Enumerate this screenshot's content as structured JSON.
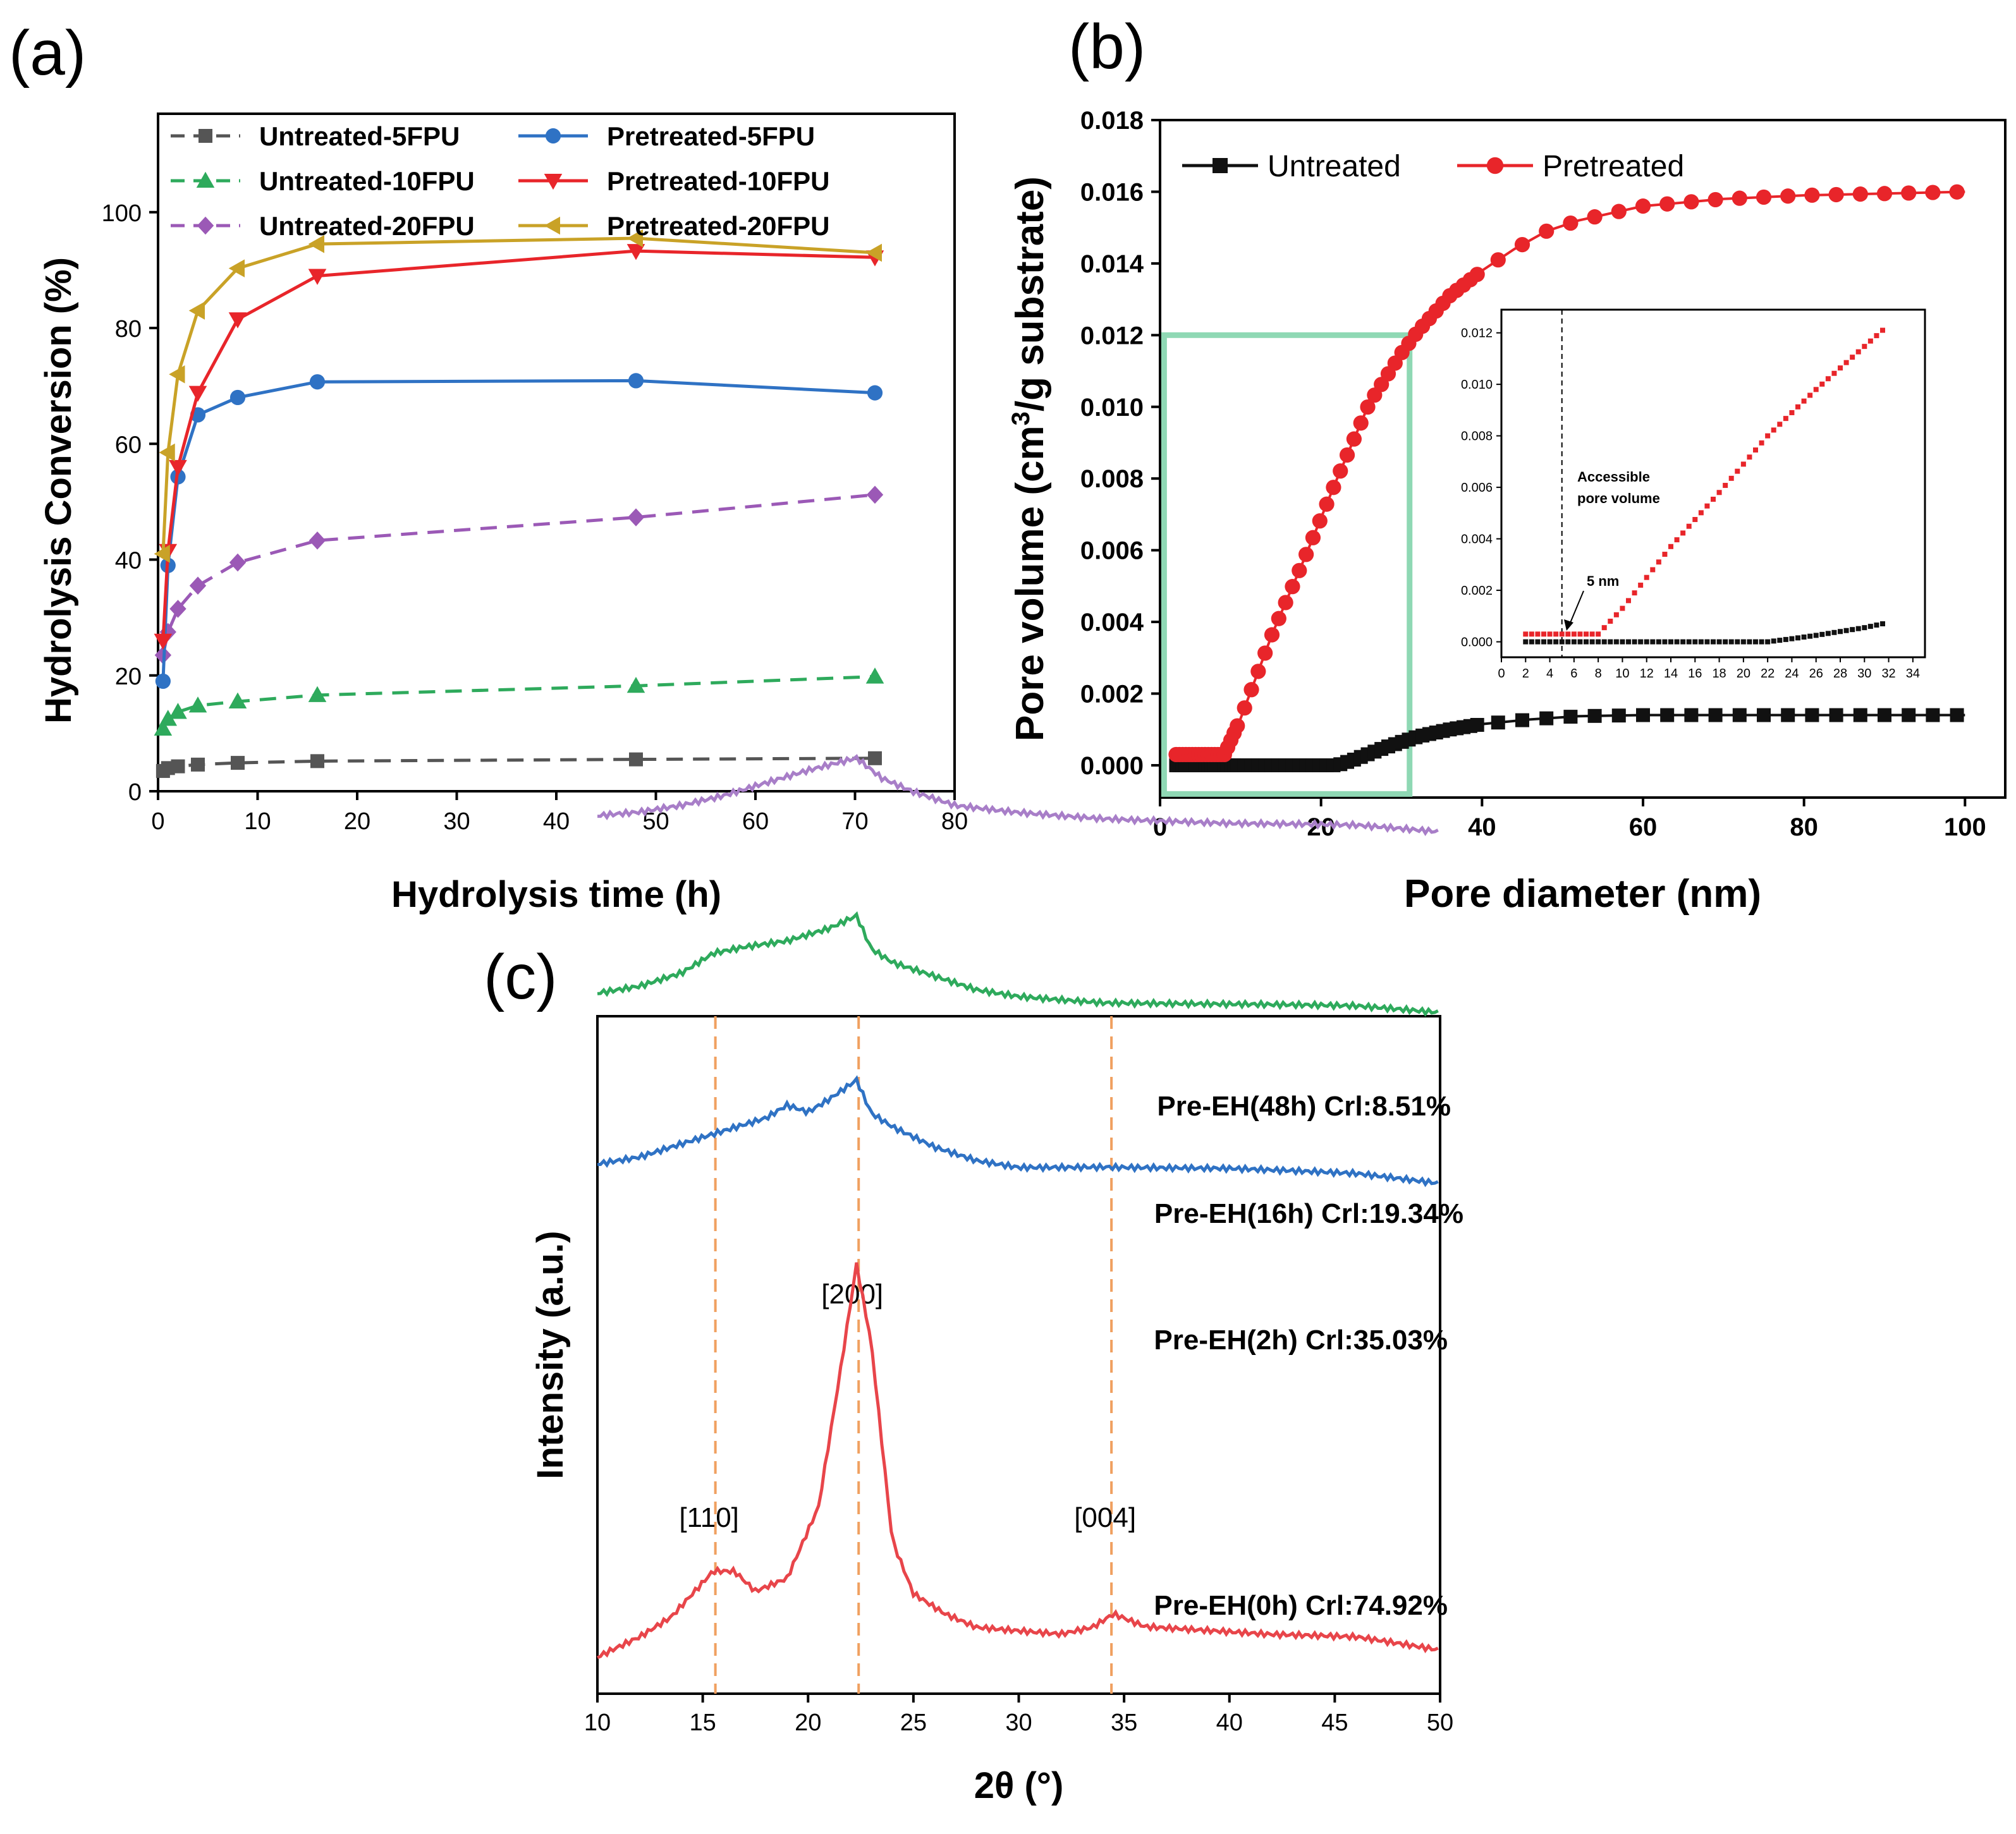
{
  "panels": {
    "a": "(a)",
    "b": "(b)",
    "c": "(c)"
  },
  "chart_data": [
    {
      "id": "a",
      "type": "line",
      "xlabel": "Hydrolysis time (h)",
      "ylabel": "Hydrolysis Conversion (%)",
      "xlim": [
        0,
        80
      ],
      "ylim": [
        0,
        117
      ],
      "xticks": [
        0,
        10,
        20,
        30,
        40,
        50,
        60,
        70,
        80
      ],
      "yticks": [
        0,
        20,
        40,
        60,
        80,
        100
      ],
      "legend_position": "top-left, two columns",
      "x": [
        0.5,
        1,
        2,
        4,
        8,
        16,
        48,
        72
      ],
      "series": [
        {
          "name": "Untreated-5FPU",
          "color": "#555555",
          "marker": "square",
          "dashed": true,
          "values": [
            3.5,
            4.0,
            4.3,
            4.6,
            4.9,
            5.2,
            5.5,
            5.7
          ]
        },
        {
          "name": "Untreated-10FPU",
          "color": "#2eaa5c",
          "marker": "triangle-up",
          "dashed": true,
          "values": [
            10.8,
            12.5,
            13.7,
            14.8,
            15.5,
            16.6,
            18.2,
            19.8
          ]
        },
        {
          "name": "Untreated-20FPU",
          "color": "#9b59b6",
          "marker": "diamond",
          "dashed": true,
          "values": [
            23.5,
            27.5,
            31.5,
            35.5,
            39.5,
            43.3,
            47.3,
            51.2
          ]
        },
        {
          "name": "Pretreated-5FPU",
          "color": "#2f72c4",
          "marker": "circle",
          "dashed": false,
          "values": [
            19.0,
            39.0,
            54.3,
            65.0,
            68.0,
            70.7,
            70.9,
            68.8
          ]
        },
        {
          "name": "Pretreated-10FPU",
          "color": "#e8252a",
          "marker": "triangle-down",
          "dashed": false,
          "values": [
            26.0,
            41.5,
            56.0,
            68.8,
            81.5,
            89.0,
            93.3,
            92.2
          ]
        },
        {
          "name": "Pretreated-20FPU",
          "color": "#c9a227",
          "marker": "triangle-left",
          "dashed": false,
          "values": [
            41.0,
            58.5,
            72.0,
            83.0,
            90.3,
            94.5,
            95.5,
            93.0
          ]
        }
      ]
    },
    {
      "id": "b",
      "type": "scatter",
      "xlabel": "Pore diameter (nm)",
      "ylabel_parts": [
        "Pore volume (cm",
        "3",
        "/g substrate)"
      ],
      "xlim": [
        0,
        105
      ],
      "ylim": [
        -0.0009,
        0.018
      ],
      "xticks": [
        0,
        20,
        40,
        60,
        80,
        100
      ],
      "yticks": [
        "0.000",
        "0.002",
        "0.004",
        "0.006",
        "0.008",
        "0.010",
        "0.012",
        "0.014",
        "0.016",
        "0.018"
      ],
      "legend_position": "top-left, one row",
      "series": [
        {
          "name": "Untreated",
          "color": "#111111",
          "marker": "square",
          "points": [
            [
              2,
              0.0
            ],
            [
              22,
              0.0
            ],
            [
              24,
              0.00015
            ],
            [
              28,
              0.0005
            ],
            [
              32,
              0.0008
            ],
            [
              36,
              0.001
            ],
            [
              40,
              0.00115
            ],
            [
              46,
              0.00128
            ],
            [
              52,
              0.00137
            ],
            [
              60,
              0.0014
            ],
            [
              80,
              0.0014
            ],
            [
              100,
              0.0014
            ]
          ]
        },
        {
          "name": "Pretreated",
          "color": "#e8252a",
          "marker": "circle",
          "points": [
            [
              2,
              0.0003
            ],
            [
              8,
              0.0003
            ],
            [
              10,
              0.0013
            ],
            [
              14,
              0.0037
            ],
            [
              18,
              0.0058
            ],
            [
              22,
              0.008
            ],
            [
              26,
              0.0101
            ],
            [
              30,
              0.0115
            ],
            [
              32,
              0.0121
            ],
            [
              36,
              0.0131
            ],
            [
              40,
              0.0138
            ],
            [
              44,
              0.0144
            ],
            [
              48,
              0.0149
            ],
            [
              52,
              0.0152
            ],
            [
              56,
              0.0154
            ],
            [
              60,
              0.0156
            ],
            [
              70,
              0.0158
            ],
            [
              80,
              0.0159
            ],
            [
              90,
              0.01595
            ],
            [
              100,
              0.016
            ]
          ]
        }
      ],
      "highlight_box": {
        "x": [
          0.5,
          31
        ],
        "y": [
          -0.0008,
          0.012
        ],
        "color": "#8fd8b4"
      },
      "inset": {
        "xlim": [
          0,
          35
        ],
        "ylim": [
          -0.0006,
          0.0129
        ],
        "xticks": [
          0,
          2,
          4,
          6,
          8,
          10,
          12,
          14,
          16,
          18,
          20,
          22,
          24,
          26,
          28,
          30,
          32,
          34
        ],
        "yticks": [
          "0.000",
          "0.002",
          "0.004",
          "0.006",
          "0.008",
          "0.010",
          "0.012"
        ],
        "vline_x": 5,
        "annotation_title": [
          "Accessible",
          "pore volume"
        ],
        "annotation_arrow": "5 nm",
        "series": [
          {
            "name": "Untreated",
            "color": "#111111",
            "points": [
              [
                2,
                0.0
              ],
              [
                22,
                0.0
              ],
              [
                24,
                0.00012
              ],
              [
                26,
                0.00025
              ],
              [
                28,
                0.0004
              ],
              [
                30,
                0.00055
              ],
              [
                31.5,
                0.0007
              ]
            ]
          },
          {
            "name": "Pretreated",
            "color": "#e8252a",
            "points": [
              [
                2,
                0.0003
              ],
              [
                8,
                0.0003
              ],
              [
                10,
                0.0013
              ],
              [
                14,
                0.0037
              ],
              [
                18,
                0.0058
              ],
              [
                22,
                0.008
              ],
              [
                26,
                0.0098
              ],
              [
                31.5,
                0.0121
              ]
            ]
          }
        ]
      }
    },
    {
      "id": "c",
      "type": "line",
      "xlabel": "2θ (°)",
      "ylabel": "Intensity (a.u.)",
      "xlim": [
        10,
        50
      ],
      "xticks": [
        10,
        15,
        20,
        25,
        30,
        35,
        40,
        45,
        50
      ],
      "peak_lines": [
        15.6,
        22.4,
        34.4
      ],
      "peak_labels": [
        {
          "text": "[110]",
          "x": 15.6,
          "y": 0.22
        },
        {
          "text": "[200]",
          "x": 22.4,
          "y": 0.56
        },
        {
          "text": "[004]",
          "x": 34.4,
          "y": 0.22
        }
      ],
      "series": [
        {
          "name": "Pre-EH(0h) CrI:74.92%",
          "label": "Pre-EH(0h) Crl:74.92%",
          "color": "#e8454a",
          "points": [
            [
              10,
              0.02
            ],
            [
              12,
              0.05
            ],
            [
              13.5,
              0.08
            ],
            [
              15.5,
              0.15
            ],
            [
              16.5,
              0.15
            ],
            [
              17.5,
              0.12
            ],
            [
              19,
              0.14
            ],
            [
              20.5,
              0.25
            ],
            [
              21.5,
              0.45
            ],
            [
              22.3,
              0.62
            ],
            [
              23,
              0.5
            ],
            [
              24,
              0.2
            ],
            [
              25,
              0.12
            ],
            [
              26.5,
              0.09
            ],
            [
              28,
              0.07
            ],
            [
              30,
              0.065
            ],
            [
              32,
              0.06
            ],
            [
              33.5,
              0.07
            ],
            [
              34.5,
              0.09
            ],
            [
              36,
              0.07
            ],
            [
              38,
              0.065
            ],
            [
              42,
              0.055
            ],
            [
              46,
              0.05
            ],
            [
              50,
              0.03
            ]
          ]
        },
        {
          "name": "Pre-EH(2h) CrI:35.03%",
          "label": "Pre-EH(2h) Crl:35.03%",
          "color": "#2f72c4",
          "points": [
            [
              10,
              0.77
            ],
            [
              12,
              0.78
            ],
            [
              14,
              0.8
            ],
            [
              16,
              0.82
            ],
            [
              18,
              0.84
            ],
            [
              19,
              0.86
            ],
            [
              20,
              0.85
            ],
            [
              21,
              0.87
            ],
            [
              22.3,
              0.9
            ],
            [
              23,
              0.85
            ],
            [
              24,
              0.83
            ],
            [
              26,
              0.8
            ],
            [
              28,
              0.78
            ],
            [
              30,
              0.77
            ],
            [
              34,
              0.77
            ],
            [
              40,
              0.765
            ],
            [
              46,
              0.755
            ],
            [
              50,
              0.74
            ]
          ]
        },
        {
          "name": "Pre-EH(16h) CrI:19.34%",
          "label": "Pre-EH(16h) Crl:19.34%",
          "color": "#2eaa5c",
          "points": [
            [
              10,
              1.03
            ],
            [
              12,
              1.04
            ],
            [
              14,
              1.06
            ],
            [
              15.5,
              1.09
            ],
            [
              17,
              1.1
            ],
            [
              19,
              1.11
            ],
            [
              21,
              1.13
            ],
            [
              22.3,
              1.15
            ],
            [
              23,
              1.1
            ],
            [
              24,
              1.08
            ],
            [
              26,
              1.06
            ],
            [
              28,
              1.04
            ],
            [
              30,
              1.03
            ],
            [
              34,
              1.02
            ],
            [
              40,
              1.015
            ],
            [
              46,
              1.01
            ],
            [
              50,
              1.0
            ]
          ]
        },
        {
          "name": "Pre-EH(48h) CrI:8.51%",
          "label": "Pre-EH(48h) Crl:8.51%",
          "color": "#a87ec8",
          "points": [
            [
              10,
              1.3
            ],
            [
              12,
              1.305
            ],
            [
              14,
              1.315
            ],
            [
              16,
              1.33
            ],
            [
              18,
              1.35
            ],
            [
              20,
              1.37
            ],
            [
              22.3,
              1.39
            ],
            [
              23.5,
              1.36
            ],
            [
              25,
              1.34
            ],
            [
              27,
              1.32
            ],
            [
              30,
              1.31
            ],
            [
              34,
              1.3
            ],
            [
              40,
              1.29
            ],
            [
              46,
              1.285
            ],
            [
              50,
              1.275
            ]
          ]
        }
      ]
    }
  ]
}
